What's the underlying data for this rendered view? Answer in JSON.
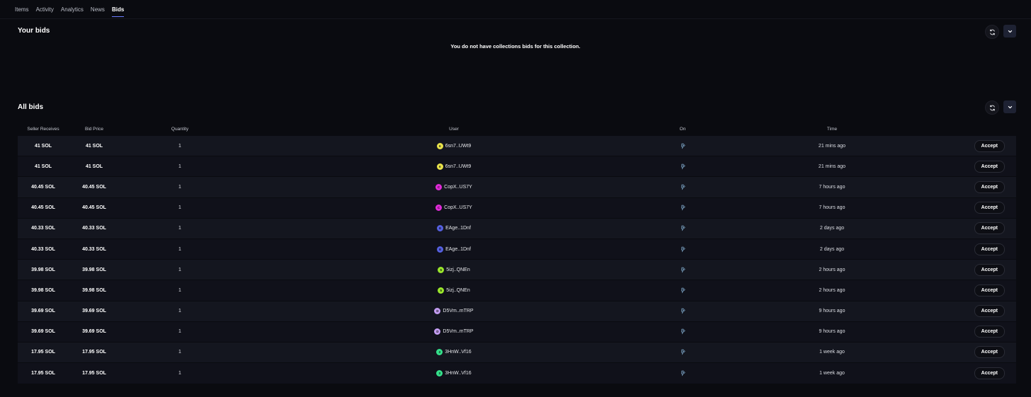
{
  "nav": {
    "tabs": [
      {
        "label": "Items",
        "active": false
      },
      {
        "label": "Activity",
        "active": false
      },
      {
        "label": "Analytics",
        "active": false
      },
      {
        "label": "News",
        "active": false
      },
      {
        "label": "Bids",
        "active": true
      }
    ]
  },
  "your_bids": {
    "title": "Your bids",
    "empty_message": "You do not have collections bids for this collection."
  },
  "all_bids": {
    "title": "All bids",
    "columns": [
      "Seller Receives",
      "Bid Price",
      "Quantity",
      "User",
      "On",
      "Time",
      ""
    ],
    "accept_label": "Accept",
    "rows": [
      {
        "seller_receives": "41 SOL",
        "bid_price": "41 SOL",
        "quantity": "1",
        "user_initial": "6",
        "user": "6sn7..UWt9",
        "avatar_color": "#e8e24a",
        "time": "21 mins ago"
      },
      {
        "seller_receives": "41 SOL",
        "bid_price": "41 SOL",
        "quantity": "1",
        "user_initial": "6",
        "user": "6sn7..UWt9",
        "avatar_color": "#e8e24a",
        "time": "21 mins ago"
      },
      {
        "seller_receives": "40.45 SOL",
        "bid_price": "40.45 SOL",
        "quantity": "1",
        "user_initial": "C",
        "user": "CopX..US7Y",
        "avatar_color": "#e02ad8",
        "time": "7 hours ago"
      },
      {
        "seller_receives": "40.45 SOL",
        "bid_price": "40.45 SOL",
        "quantity": "1",
        "user_initial": "C",
        "user": "CopX..US7Y",
        "avatar_color": "#e02ad8",
        "time": "7 hours ago"
      },
      {
        "seller_receives": "40.33 SOL",
        "bid_price": "40.33 SOL",
        "quantity": "1",
        "user_initial": "E",
        "user": "EAge..1Dnf",
        "avatar_color": "#5560e0",
        "time": "2 days ago"
      },
      {
        "seller_receives": "40.33 SOL",
        "bid_price": "40.33 SOL",
        "quantity": "1",
        "user_initial": "E",
        "user": "EAge..1Dnf",
        "avatar_color": "#5560e0",
        "time": "2 days ago"
      },
      {
        "seller_receives": "39.98 SOL",
        "bid_price": "39.98 SOL",
        "quantity": "1",
        "user_initial": "5",
        "user": "5izj..QNEn",
        "avatar_color": "#9ae62c",
        "time": "2 hours ago"
      },
      {
        "seller_receives": "39.98 SOL",
        "bid_price": "39.98 SOL",
        "quantity": "1",
        "user_initial": "5",
        "user": "5izj..QNEn",
        "avatar_color": "#9ae62c",
        "time": "2 hours ago"
      },
      {
        "seller_receives": "39.69 SOL",
        "bid_price": "39.69 SOL",
        "quantity": "1",
        "user_initial": "D",
        "user": "D5Vm..mTRP",
        "avatar_color": "#c29cf0",
        "time": "9 hours ago"
      },
      {
        "seller_receives": "39.69 SOL",
        "bid_price": "39.69 SOL",
        "quantity": "1",
        "user_initial": "D",
        "user": "D5Vm..mTRP",
        "avatar_color": "#c29cf0",
        "time": "9 hours ago"
      },
      {
        "seller_receives": "17.95 SOL",
        "bid_price": "17.95 SOL",
        "quantity": "1",
        "user_initial": "3",
        "user": "3HnW..Vf16",
        "avatar_color": "#34e08a",
        "time": "1 week ago"
      },
      {
        "seller_receives": "17.95 SOL",
        "bid_price": "17.95 SOL",
        "quantity": "1",
        "user_initial": "3",
        "user": "3HnW..Vf16",
        "avatar_color": "#34e08a",
        "time": "1 week ago"
      }
    ]
  },
  "icons": {
    "refresh": "refresh-icon",
    "collapse": "chevron-down-icon",
    "marketplace": "marketplace-logo-icon"
  }
}
